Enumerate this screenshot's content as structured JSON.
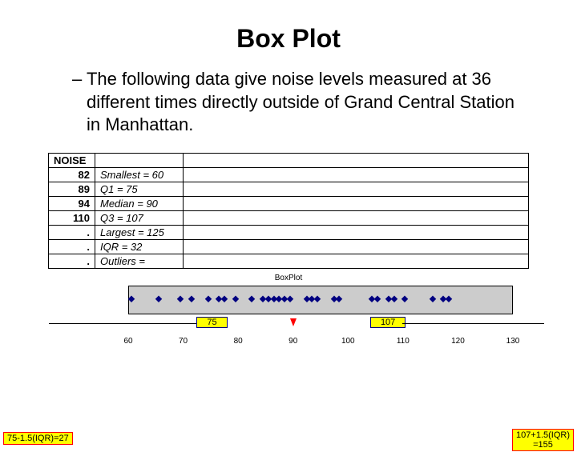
{
  "title": "Box Plot",
  "description": "– The following data give noise levels measured at 36 different times directly outside of Grand Central Station in Manhattan.",
  "table": {
    "header": "NOISE",
    "left_values": [
      "82",
      "89",
      "94",
      "110",
      ".",
      ".",
      "."
    ],
    "stats": [
      "Smallest = 60",
      "Q1 = 75",
      "Median = 90",
      "Q3 = 107",
      "Largest = 125",
      "IQR = 32",
      "Outliers ="
    ]
  },
  "boxplot": {
    "label": "BoxPlot",
    "axis_min": 60,
    "axis_max": 130,
    "ticks": [
      60,
      70,
      80,
      90,
      100,
      110,
      120,
      130
    ],
    "q1": 75,
    "q3": 107,
    "median": 90,
    "points": [
      60,
      65,
      69,
      71,
      74,
      76,
      77,
      79,
      82,
      84,
      85,
      86,
      87,
      88,
      89,
      92,
      93,
      94,
      97,
      98,
      104,
      105,
      107,
      108,
      110,
      115,
      117,
      118
    ],
    "strip_bg": "#cccccc",
    "dot_color": "#000080",
    "highlight_bg": "#ffff00",
    "q_border": "#000080",
    "fence_border": "#ff0000"
  },
  "fences": {
    "left_text": "75-1.5(IQR)=27",
    "right_line1": "107+1.5(IQR)",
    "right_line2": "=155"
  }
}
